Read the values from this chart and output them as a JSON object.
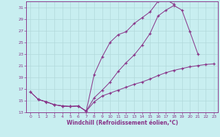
{
  "xlabel": "Windchill (Refroidissement éolien,°C)",
  "background_color": "#c8eef0",
  "grid_color": "#b0d8da",
  "line_color": "#883388",
  "xlim": [
    -0.5,
    23.5
  ],
  "ylim": [
    13,
    32
  ],
  "xticks": [
    0,
    1,
    2,
    3,
    4,
    5,
    6,
    7,
    8,
    9,
    10,
    11,
    12,
    13,
    14,
    15,
    16,
    17,
    18,
    19,
    20,
    21,
    22,
    23
  ],
  "yticks": [
    13,
    15,
    17,
    19,
    21,
    23,
    25,
    27,
    29,
    31
  ],
  "line1_x": [
    0,
    1,
    2,
    3,
    4,
    5,
    6,
    7,
    8,
    9,
    10,
    11,
    12,
    13,
    14,
    15,
    16,
    17,
    18
  ],
  "line1_y": [
    16.5,
    15.2,
    14.8,
    14.3,
    14.1,
    14.0,
    14.1,
    13.2,
    19.5,
    22.5,
    25.0,
    26.3,
    26.8,
    28.2,
    29.2,
    30.2,
    32.0,
    32.3,
    31.5
  ],
  "line2_x": [
    0,
    1,
    2,
    3,
    4,
    5,
    6,
    7,
    8,
    9,
    10,
    11,
    12,
    13,
    14,
    15,
    16,
    17,
    18,
    19,
    20,
    21,
    22,
    23
  ],
  "line2_y": [
    16.5,
    15.2,
    14.8,
    14.3,
    14.1,
    14.0,
    14.1,
    13.2,
    15.5,
    16.8,
    18.2,
    20.0,
    21.5,
    22.8,
    24.5,
    26.5,
    29.5,
    30.5,
    31.3,
    30.5,
    26.8,
    23.0,
    null,
    null
  ],
  "line3_x": [
    1,
    2,
    3,
    4,
    5,
    6,
    7,
    8,
    9,
    10,
    11,
    12,
    13,
    14,
    15,
    16,
    17,
    18,
    19,
    20,
    21,
    22,
    23
  ],
  "line3_y": [
    15.2,
    14.8,
    14.3,
    14.1,
    14.0,
    14.1,
    13.2,
    14.8,
    15.8,
    16.3,
    16.8,
    17.3,
    17.8,
    18.2,
    18.7,
    19.3,
    19.8,
    20.2,
    20.5,
    20.8,
    21.0,
    21.2,
    21.3
  ]
}
